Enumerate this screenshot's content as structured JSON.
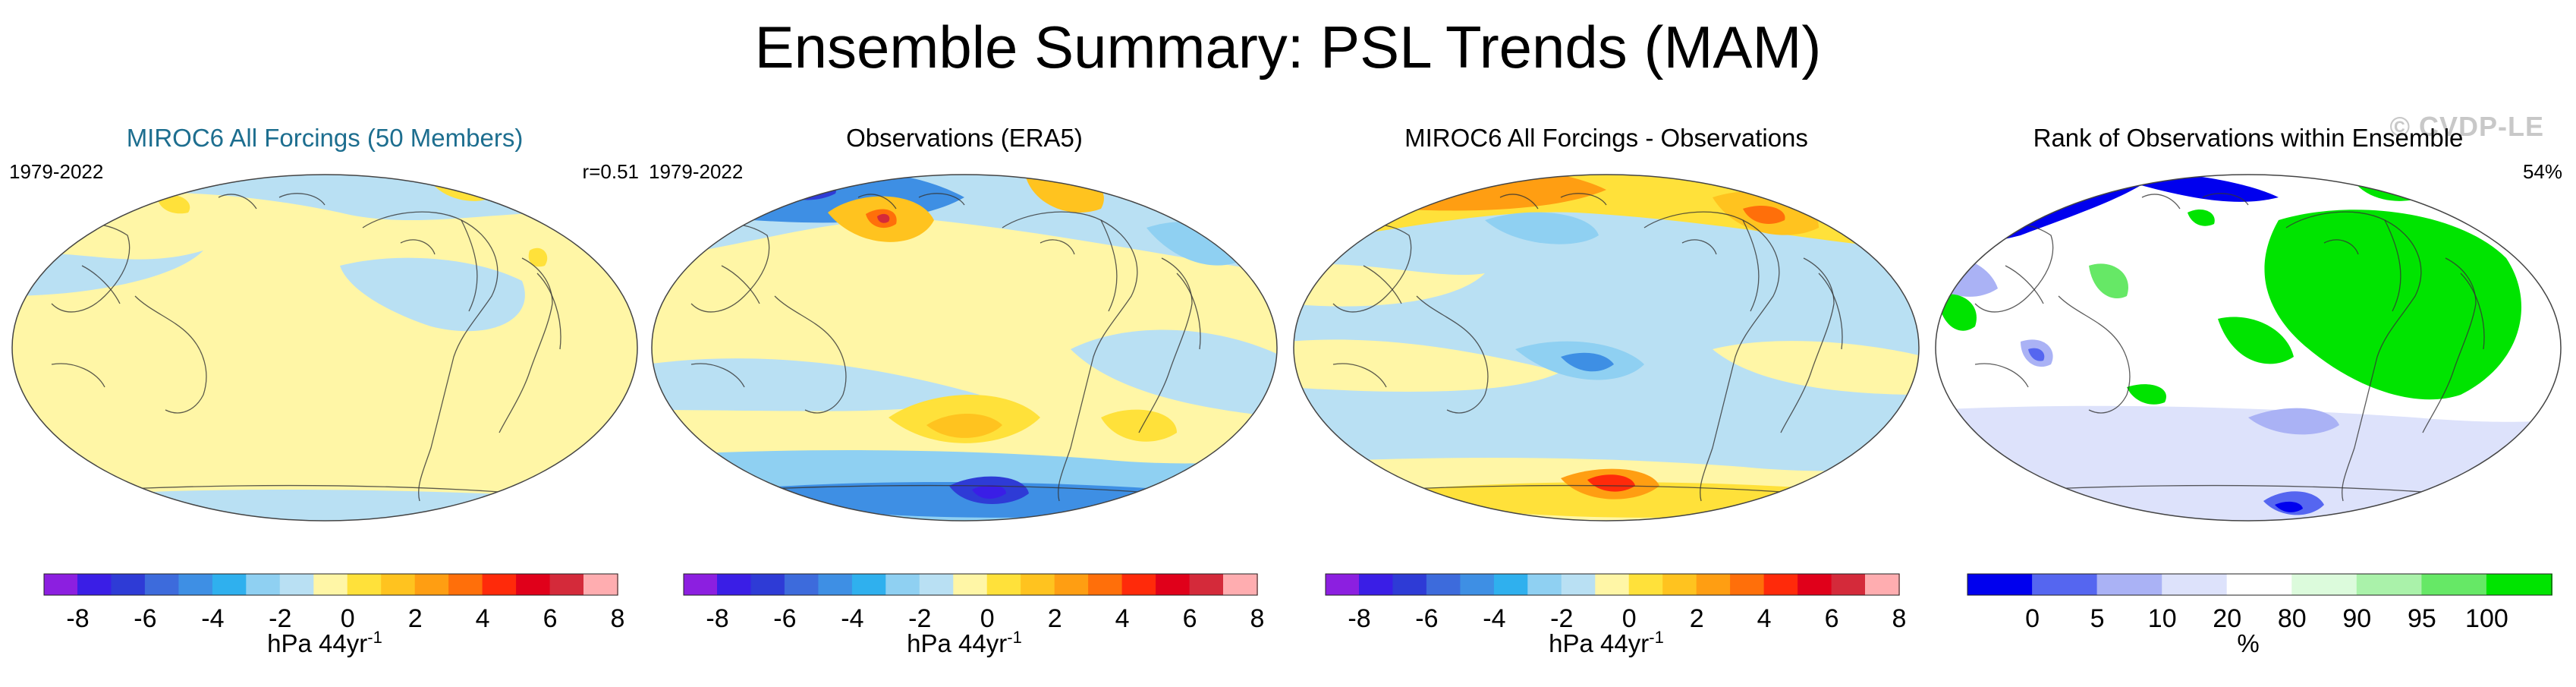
{
  "title": "Ensemble Summary: PSL Trends (MAM)",
  "watermark": "© CVDP-LE",
  "colors": {
    "diverging": [
      "#8c1fe0",
      "#3a1ee6",
      "#2e3bd6",
      "#3d6bdc",
      "#3e8fe4",
      "#2fb0ee",
      "#8fd0f2",
      "#b9e0f3",
      "#fff6a6",
      "#ffe13a",
      "#ffc31f",
      "#ff9e12",
      "#ff6f0a",
      "#ff2a0a",
      "#e0001a",
      "#d42a3a",
      "#ffadb0"
    ],
    "rank": [
      "#0000ee",
      "#5566f0",
      "#aab2f5",
      "#dde2fb",
      "#ffffff",
      "#dcfbdc",
      "#aaf2aa",
      "#66e866",
      "#00e400"
    ]
  },
  "chart_data": [
    {
      "type": "map",
      "title": "MIROC6 All Forcings (50 Members)",
      "period": "1979-2022",
      "stat": "r=0.51",
      "colorbar_ticks": [
        "-8",
        "-6",
        "-4",
        "-2",
        "0",
        "2",
        "4",
        "6",
        "8"
      ],
      "colorbar_label": "hPa 44yr",
      "colorbar_label_exp": "-1",
      "pattern": "ensemble-mean"
    },
    {
      "type": "map",
      "title": "Observations (ERA5)",
      "period": "1979-2022",
      "stat": "",
      "colorbar_ticks": [
        "-8",
        "-6",
        "-4",
        "-2",
        "0",
        "2",
        "4",
        "6",
        "8"
      ],
      "colorbar_label": "hPa 44yr",
      "colorbar_label_exp": "-1",
      "pattern": "observations"
    },
    {
      "type": "map",
      "title": "MIROC6 All Forcings - Observations",
      "period": "",
      "stat": "",
      "colorbar_ticks": [
        "-8",
        "-6",
        "-4",
        "-2",
        "0",
        "2",
        "4",
        "6",
        "8"
      ],
      "colorbar_label": "hPa 44yr",
      "colorbar_label_exp": "-1",
      "pattern": "difference"
    },
    {
      "type": "map",
      "title": "Rank of Observations within Ensemble",
      "period": "",
      "stat": "54%",
      "colorbar_ticks": [
        "0",
        "5",
        "10",
        "20",
        "80",
        "90",
        "95",
        "100"
      ],
      "colorbar_label": "%",
      "colorbar_label_exp": "",
      "pattern": "rank"
    }
  ]
}
